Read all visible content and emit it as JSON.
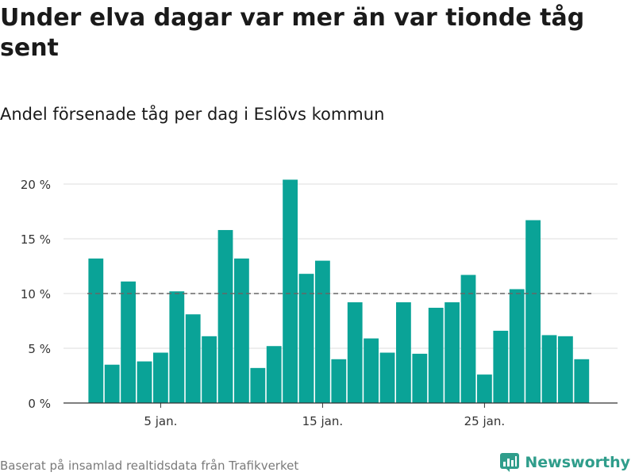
{
  "header": {
    "title": "Under elva dagar var mer än var tionde tåg sent",
    "subtitle": "Andel försenade tåg per dag i Eslövs kommun"
  },
  "footer": {
    "source": "Baserat på insamlad realtidsdata från Trafikverket",
    "brand": "Newsworthy"
  },
  "colors": {
    "bar": "#0aa397",
    "reference_line": "#666666",
    "grid": "#dddddd",
    "brand": "#2f9d8b"
  },
  "chart_data": {
    "type": "bar",
    "x": [
      1,
      2,
      3,
      4,
      5,
      6,
      7,
      8,
      9,
      10,
      11,
      12,
      13,
      14,
      15,
      16,
      17,
      18,
      19,
      20,
      21,
      22,
      23,
      24,
      25,
      26,
      27,
      28,
      29,
      30,
      31
    ],
    "values": [
      13.2,
      3.5,
      11.1,
      3.8,
      4.6,
      10.2,
      8.1,
      6.1,
      15.8,
      13.2,
      3.2,
      5.2,
      20.4,
      11.8,
      13.0,
      4.0,
      9.2,
      5.9,
      4.6,
      9.2,
      4.5,
      8.7,
      9.2,
      11.7,
      2.6,
      6.6,
      10.4,
      16.7,
      6.2,
      6.1,
      4.0
    ],
    "reference_line": 10,
    "ylim": [
      0,
      20.5
    ],
    "yticks": [
      {
        "value": 0,
        "label": "0 %"
      },
      {
        "value": 5,
        "label": "5 %"
      },
      {
        "value": 10,
        "label": "10 %"
      },
      {
        "value": 15,
        "label": "15 %"
      },
      {
        "value": 20,
        "label": "20 %"
      }
    ],
    "xticks": [
      {
        "value": 5,
        "label": "5 jan."
      },
      {
        "value": 15,
        "label": "15 jan."
      },
      {
        "value": 25,
        "label": "25 jan."
      }
    ],
    "grid": true
  }
}
